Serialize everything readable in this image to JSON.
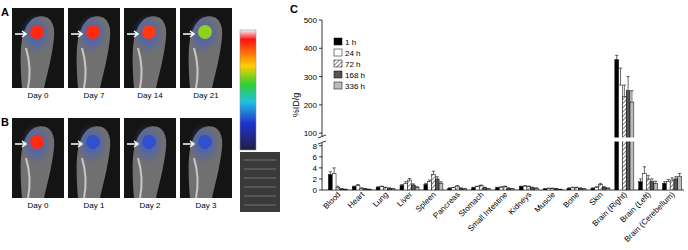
{
  "panels": [
    {
      "label": "A",
      "frames": [
        {
          "label": "Day 0",
          "color": "#ff2a10"
        },
        {
          "label": "Day 7",
          "color": "#ff2a10"
        },
        {
          "label": "Day 14",
          "color": "#ff3a10"
        },
        {
          "label": "Day 21",
          "color": "#8fd020"
        }
      ]
    },
    {
      "label": "B",
      "frames": [
        {
          "label": "Day 0",
          "color": "#ff2a10"
        },
        {
          "label": "Day 1",
          "color": "#3050d0"
        },
        {
          "label": "Day 2",
          "color": "#3050d0"
        },
        {
          "label": "Day 3",
          "color": "#3050d0"
        }
      ]
    }
  ],
  "chart_data": {
    "type": "bar",
    "title": "C",
    "y_label": "%ID/g",
    "categories": [
      "Blood",
      "Heart",
      "Lung",
      "Liver",
      "Spleen",
      "Pancreas",
      "Stomach",
      "Small Intestine",
      "Kidneys",
      "Muscle",
      "Bone",
      "Skin",
      "Brain (Right)",
      "Brain (Left)",
      "Brain (Cerebellum)"
    ],
    "series": [
      {
        "name": "1 h",
        "color": "#000000",
        "values": [
          2.8,
          0.6,
          0.5,
          0.8,
          1.0,
          0.3,
          0.4,
          0.4,
          0.6,
          0.2,
          0.3,
          0.3,
          360,
          1.5,
          1.2
        ],
        "errors": [
          0.5,
          0.1,
          0.1,
          0.2,
          0.2,
          0.1,
          0.1,
          0.1,
          0.1,
          0.05,
          0.1,
          0.1,
          15,
          0.5,
          0.3
        ]
      },
      {
        "name": "24 h",
        "color": "#ffffff",
        "values": [
          3.0,
          0.8,
          0.6,
          1.2,
          1.5,
          0.4,
          0.6,
          0.5,
          0.7,
          0.3,
          0.4,
          0.5,
          270,
          3.0,
          1.5
        ],
        "errors": [
          1.0,
          0.2,
          0.1,
          0.3,
          0.3,
          0.1,
          0.1,
          0.1,
          0.1,
          0.05,
          0.1,
          0.1,
          60,
          1.2,
          0.4
        ]
      },
      {
        "name": "72 h",
        "color": "#ffffff",
        "line_style": "hatched",
        "values": [
          0.5,
          0.3,
          0.4,
          1.8,
          2.8,
          0.7,
          0.8,
          0.6,
          0.6,
          0.3,
          0.4,
          1.0,
          230,
          2.0,
          1.8
        ],
        "errors": [
          0.2,
          0.1,
          0.1,
          0.3,
          0.6,
          0.1,
          0.1,
          0.1,
          0.1,
          0.05,
          0.1,
          0.2,
          40,
          0.6,
          0.4
        ]
      },
      {
        "name": "168 h",
        "color": "#555555",
        "values": [
          0.2,
          0.2,
          0.3,
          0.9,
          2.0,
          0.3,
          0.4,
          0.3,
          0.4,
          0.2,
          0.3,
          0.5,
          250,
          1.5,
          2.0
        ],
        "errors": [
          0.05,
          0.05,
          0.1,
          0.2,
          0.4,
          0.1,
          0.1,
          0.1,
          0.1,
          0.05,
          0.1,
          0.1,
          50,
          0.5,
          0.4
        ]
      },
      {
        "name": "336 h",
        "color": "#bbbbbb",
        "values": [
          0.1,
          0.1,
          0.2,
          0.5,
          1.2,
          0.2,
          0.2,
          0.2,
          0.3,
          0.1,
          0.2,
          0.3,
          210,
          1.2,
          2.5
        ],
        "errors": [
          0.05,
          0.05,
          0.05,
          0.1,
          0.3,
          0.05,
          0.05,
          0.05,
          0.1,
          0.05,
          0.05,
          0.1,
          40,
          0.4,
          0.5
        ]
      }
    ],
    "ylim": [
      0,
      500
    ],
    "y_break": [
      8.5,
      90
    ],
    "yticks": [
      0,
      2,
      4,
      6,
      8,
      100,
      200,
      300,
      400,
      500
    ],
    "legend": "upper left"
  }
}
